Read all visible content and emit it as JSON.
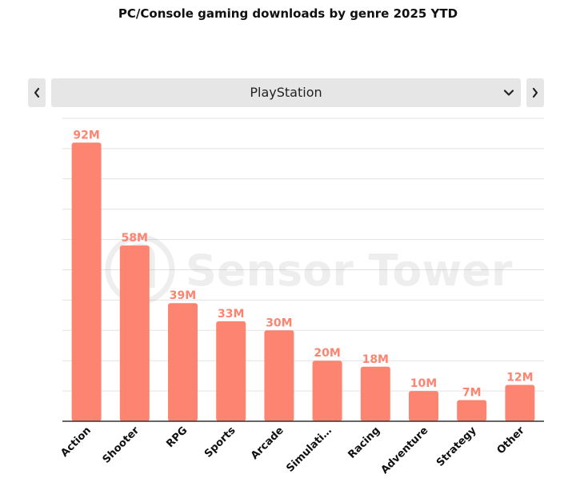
{
  "title": "PC/Console gaming downloads by genre 2025 YTD",
  "selector": {
    "value": "PlayStation"
  },
  "icons": {
    "prev": "chevron-left-icon",
    "next": "chevron-right-icon",
    "dropdown": "chevron-down-icon",
    "watermark": "sensor-tower-logo"
  },
  "watermark": {
    "text": "Sensor Tower"
  },
  "colors": {
    "bar": "#fd8471",
    "label": "#fd8471",
    "grid": "#e3e3e3",
    "axis": "#333333"
  },
  "chart_data": {
    "type": "bar",
    "title": "PC/Console gaming downloads by genre 2025 YTD",
    "categories": [
      "Action",
      "Shooter",
      "RPG",
      "Sports",
      "Arcade",
      "Simulati…",
      "Racing",
      "Adventure",
      "Strategy",
      "Other"
    ],
    "values": [
      92,
      58,
      39,
      33,
      30,
      20,
      18,
      10,
      7,
      12
    ],
    "value_labels": [
      "92M",
      "58M",
      "39M",
      "33M",
      "30M",
      "20M",
      "18M",
      "10M",
      "7M",
      "12M"
    ],
    "unit": "M",
    "ylim": [
      0,
      100
    ],
    "grid": true,
    "legend": "none"
  }
}
